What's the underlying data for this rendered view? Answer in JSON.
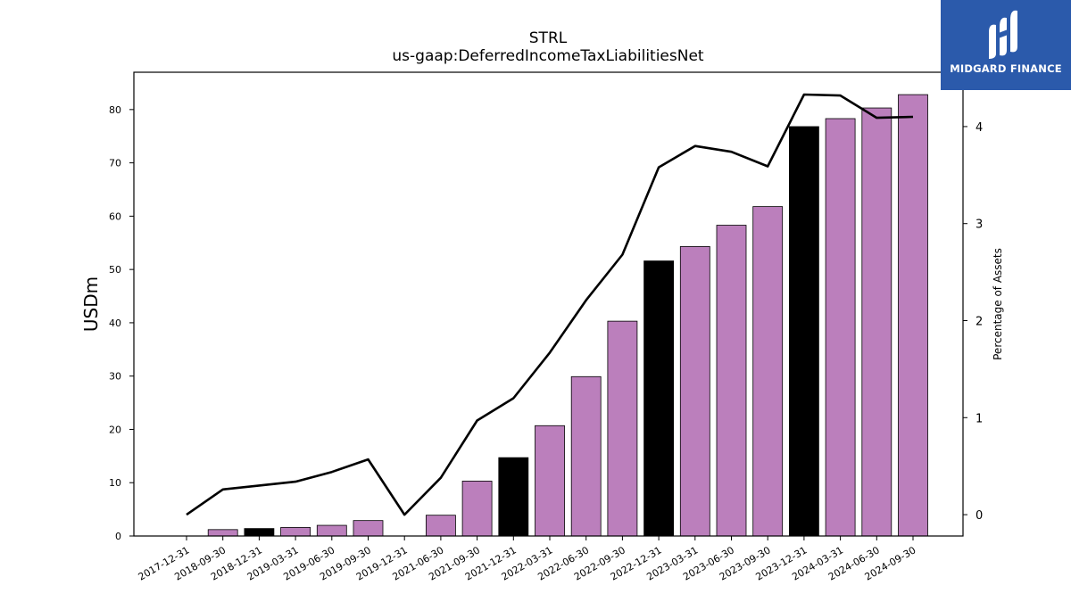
{
  "chart_data": {
    "type": "bar",
    "title": "STRL",
    "subtitle": "us-gaap:DeferredIncomeTaxLiabilitiesNet",
    "ylabel": "USDm",
    "y2label": "Percentage of Assets",
    "ylim": [
      0,
      87
    ],
    "y2lim": [
      -0.22,
      4.56
    ],
    "yticks": [
      0,
      10,
      20,
      30,
      40,
      50,
      60,
      70,
      80
    ],
    "y2ticks": [
      0,
      1,
      2,
      3,
      4
    ],
    "categories": [
      "2017-12-31",
      "2018-09-30",
      "2018-12-31",
      "2019-03-31",
      "2019-06-30",
      "2019-09-30",
      "2019-12-31",
      "2021-06-30",
      "2021-09-30",
      "2021-12-31",
      "2022-03-31",
      "2022-06-30",
      "2022-09-30",
      "2022-12-31",
      "2023-03-31",
      "2023-06-30",
      "2023-09-30",
      "2023-12-31",
      "2024-03-31",
      "2024-06-30",
      "2024-09-30"
    ],
    "series": [
      {
        "type": "bar",
        "values": [
          0,
          1.2,
          1.4,
          1.6,
          2.0,
          2.9,
          0,
          3.9,
          10.3,
          14.7,
          20.7,
          29.9,
          40.3,
          51.6,
          54.3,
          58.3,
          61.8,
          76.8,
          78.3,
          80.3,
          82.8
        ],
        "colors": [
          "#bb7fbc",
          "#bb7fbc",
          "#000000",
          "#bb7fbc",
          "#bb7fbc",
          "#bb7fbc",
          "#bb7fbc",
          "#bb7fbc",
          "#bb7fbc",
          "#000000",
          "#bb7fbc",
          "#bb7fbc",
          "#bb7fbc",
          "#000000",
          "#bb7fbc",
          "#bb7fbc",
          "#bb7fbc",
          "#000000",
          "#bb7fbc",
          "#bb7fbc",
          "#bb7fbc"
        ]
      },
      {
        "type": "line",
        "axis": "right",
        "color": "#000000",
        "values": [
          0.0,
          0.26,
          0.3,
          0.34,
          0.44,
          0.57,
          0.0,
          0.38,
          0.97,
          1.2,
          1.67,
          2.21,
          2.68,
          3.58,
          3.8,
          3.74,
          3.59,
          4.33,
          4.32,
          4.09,
          4.1
        ]
      }
    ],
    "grid": false
  },
  "logo": {
    "text": "MIDGARD FINANCE",
    "bg": "#2b5aab"
  }
}
